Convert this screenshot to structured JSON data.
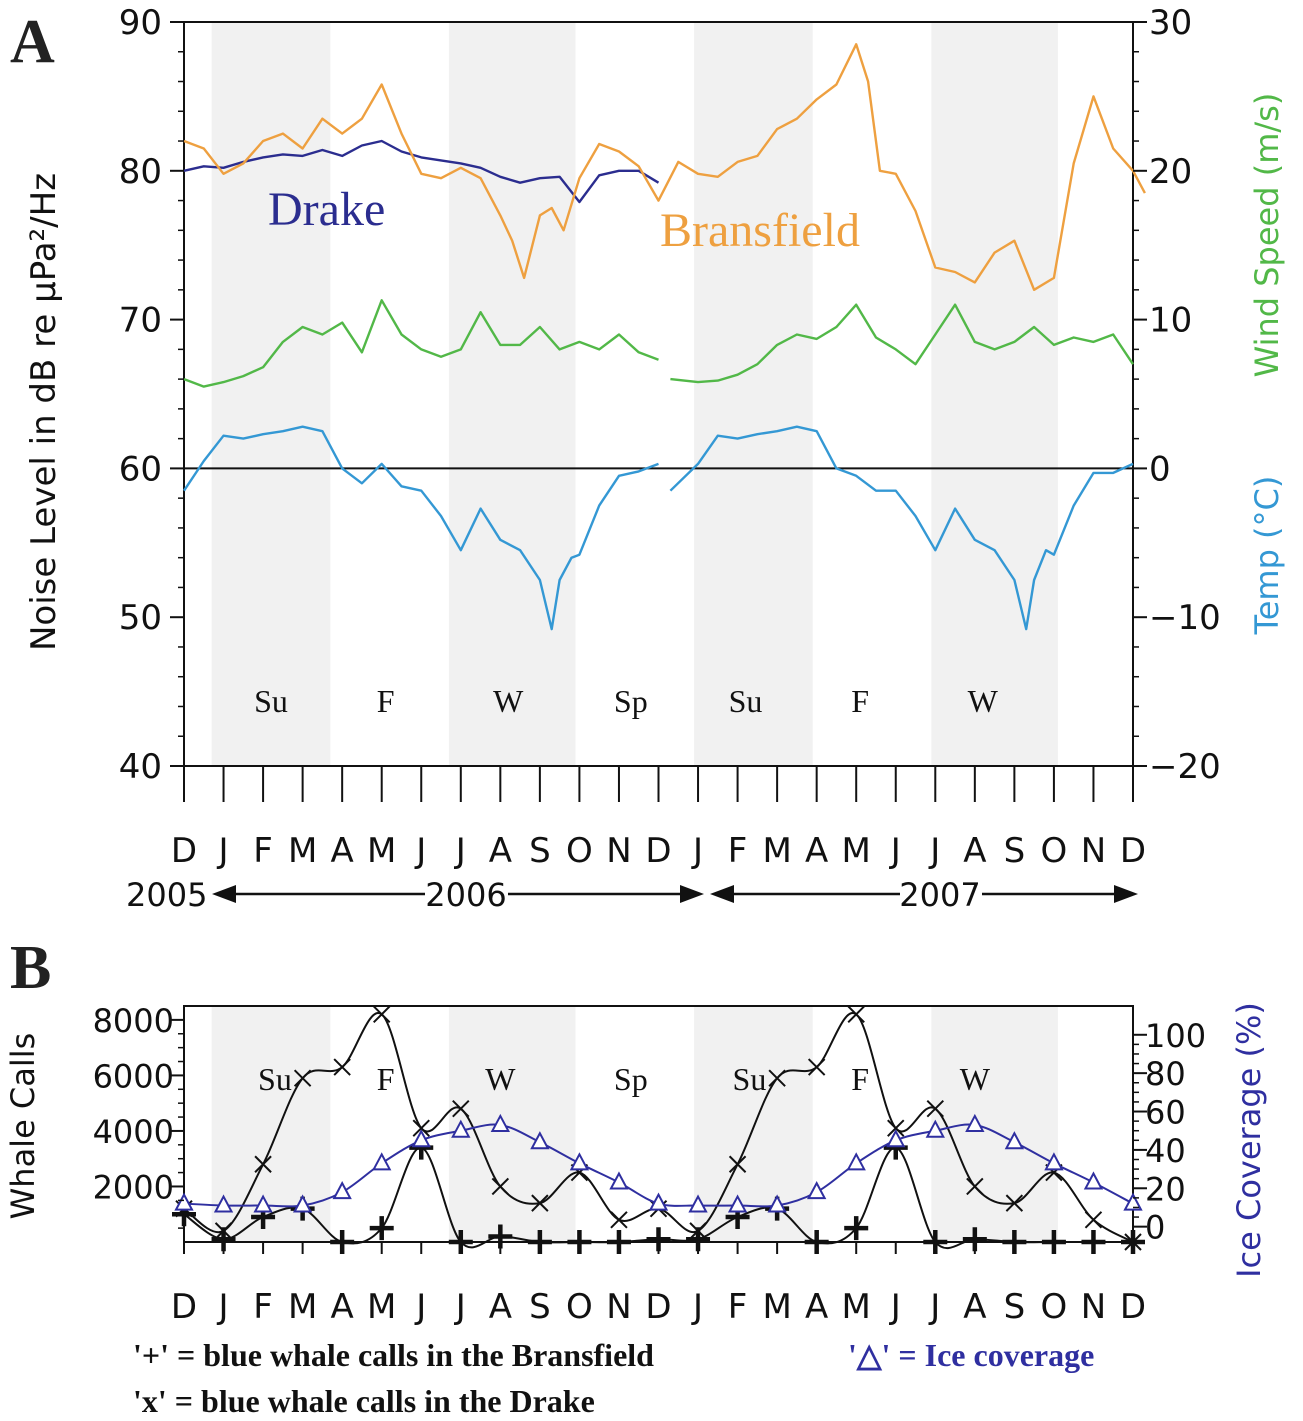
{
  "colors": {
    "drake": "#2b2d8f",
    "bransfield": "#eea040",
    "wind": "#52b848",
    "temp": "#3498d4",
    "ice": "#2f2fa0",
    "calls": "#111111",
    "shade": "#f1f1f1"
  },
  "chart_data": [
    {
      "panel_label": "A",
      "type": "line",
      "ylabel": "Noise Level in dB re μPa²/Hz",
      "ylabel_right_wind": "Wind Speed (m/s)",
      "ylabel_right_temp": "Temp (°C)",
      "y_ticks_left": [
        "40",
        "50",
        "60",
        "70",
        "80",
        "90"
      ],
      "y_ticks_right": [
        "−20",
        "−10",
        "0",
        "10",
        "20",
        "30"
      ],
      "ylim": [
        40,
        90
      ],
      "ylim_right": [
        -20,
        30
      ],
      "month_ticks": [
        "D",
        "J",
        "F",
        "M",
        "A",
        "M",
        "J",
        "J",
        "A",
        "S",
        "O",
        "N",
        "D",
        "J",
        "F",
        "M",
        "A",
        "M",
        "J",
        "J",
        "A",
        "S",
        "O",
        "N",
        "D"
      ],
      "years": [
        "2005",
        "2006",
        "2007"
      ],
      "season_labels": [
        {
          "text": "Su",
          "month": 2.2
        },
        {
          "text": "F",
          "month": 5.1
        },
        {
          "text": "W",
          "month": 8.2
        },
        {
          "text": "Sp",
          "month": 11.3
        },
        {
          "text": "Su",
          "month": 14.2
        },
        {
          "text": "F",
          "month": 17.1
        },
        {
          "text": "W",
          "month": 20.2
        }
      ],
      "shade_bands": [
        [
          0.7,
          3.7
        ],
        [
          6.7,
          9.9
        ],
        [
          12.9,
          15.9
        ],
        [
          18.9,
          22.1
        ]
      ],
      "reference_line_y": 60,
      "series": [
        {
          "name": "Drake",
          "color_key": "drake",
          "axis": "left",
          "x": [
            0,
            0.5,
            1.0,
            1.5,
            2.0,
            2.5,
            3.0,
            3.5,
            4.0,
            4.5,
            5.0,
            5.5,
            6.0,
            6.5,
            7.0,
            7.5,
            8.0,
            8.5,
            9.0,
            9.5,
            10.0,
            10.5,
            11.0,
            11.5,
            12.0
          ],
          "y": [
            80,
            80.3,
            80.2,
            80.6,
            80.9,
            81.1,
            81.0,
            81.4,
            81.0,
            81.7,
            82.0,
            81.3,
            80.9,
            80.7,
            80.5,
            80.2,
            79.6,
            79.2,
            79.5,
            79.6,
            77.9,
            79.7,
            80.0,
            80.0,
            79.2
          ]
        },
        {
          "name": "Bransfield",
          "color_key": "bransfield",
          "axis": "left",
          "x": [
            0,
            0.5,
            1.0,
            1.5,
            2.0,
            2.5,
            3.0,
            3.5,
            4.0,
            4.5,
            5.0,
            5.5,
            6.0,
            6.5,
            7.0,
            7.5,
            8.0,
            8.3,
            8.6,
            9.0,
            9.3,
            9.6,
            10.0,
            10.5,
            11.0,
            11.5,
            12.0,
            12.5,
            13.0,
            13.5,
            14.0,
            14.5,
            15.0,
            15.5,
            16.0,
            16.5,
            17.0,
            17.3,
            17.6,
            18.0,
            18.5,
            19.0,
            19.5,
            20.0,
            20.5,
            21.0,
            21.5,
            22.0,
            22.5,
            23.0,
            23.5,
            24.0,
            24.3
          ],
          "y": [
            82,
            81.5,
            79.8,
            80.5,
            82,
            82.5,
            81.5,
            83.5,
            82.5,
            83.5,
            85.8,
            82.5,
            79.8,
            79.5,
            80.2,
            79.5,
            77,
            75.3,
            72.8,
            77,
            77.5,
            76,
            79.5,
            81.8,
            81.3,
            80.3,
            78.0,
            80.6,
            79.8,
            79.6,
            80.6,
            81.0,
            82.8,
            83.5,
            84.8,
            85.8,
            88.5,
            86,
            80,
            79.8,
            77.3,
            73.5,
            73.2,
            72.5,
            74.5,
            75.3,
            72,
            72.8,
            80.5,
            85,
            81.5,
            80,
            78.5
          ]
        },
        {
          "name": "Wind Speed",
          "color_key": "wind",
          "axis": "right",
          "x": [
            0,
            0.5,
            1.0,
            1.5,
            2.0,
            2.5,
            3.0,
            3.5,
            4.0,
            4.5,
            5.0,
            5.5,
            6.0,
            6.5,
            7.0,
            7.5,
            8.0,
            8.5,
            9.0,
            9.5,
            10.0,
            10.5,
            11.0,
            11.5,
            12.0,
            null,
            12.3,
            13.0,
            13.5,
            14.0,
            14.5,
            15.0,
            15.5,
            16.0,
            16.5,
            17.0,
            17.5,
            18.0,
            18.5,
            19.0,
            19.5,
            20.0,
            20.5,
            21.0,
            21.5,
            22.0,
            22.5,
            23.0,
            23.5,
            24.0
          ],
          "y": [
            6,
            5.5,
            5.8,
            6.2,
            6.8,
            8.5,
            9.5,
            9.0,
            9.8,
            7.8,
            11.3,
            9.0,
            8.0,
            7.5,
            8.0,
            10.5,
            8.3,
            8.3,
            9.5,
            8.0,
            8.5,
            8.0,
            9.0,
            7.8,
            7.3,
            null,
            6.0,
            5.8,
            5.9,
            6.3,
            7.0,
            8.3,
            9.0,
            8.7,
            9.5,
            11.0,
            8.8,
            8.0,
            7.0,
            9.0,
            11.0,
            8.5,
            8.0,
            8.5,
            9.5,
            8.3,
            8.8,
            8.5,
            9.0,
            7.0
          ]
        },
        {
          "name": "Temp",
          "color_key": "temp",
          "axis": "right",
          "x": [
            0,
            0.5,
            1.0,
            1.5,
            2.0,
            2.5,
            3.0,
            3.5,
            4.0,
            4.5,
            5.0,
            5.5,
            6.0,
            6.5,
            7.0,
            7.5,
            8.0,
            8.5,
            9.0,
            9.3,
            9.5,
            9.8,
            10.0,
            10.5,
            11.0,
            11.5,
            12.0,
            null,
            12.3,
            13.0,
            13.5,
            14.0,
            14.5,
            15.0,
            15.5,
            16.0,
            16.5,
            17.0,
            17.5,
            18.0,
            18.5,
            19.0,
            19.5,
            20.0,
            20.5,
            21.0,
            21.3,
            21.5,
            21.8,
            22.0,
            22.5,
            23.0,
            23.5,
            24.0
          ],
          "y": [
            -1.5,
            0.5,
            2.2,
            2.0,
            2.3,
            2.5,
            2.8,
            2.5,
            0.0,
            -1.0,
            0.3,
            -1.2,
            -1.5,
            -3.2,
            -5.5,
            -2.7,
            -4.8,
            -5.5,
            -7.5,
            -10.8,
            -7.5,
            -6.0,
            -5.8,
            -2.5,
            -0.5,
            -0.2,
            0.3,
            null,
            -1.5,
            0.3,
            2.2,
            2.0,
            2.3,
            2.5,
            2.8,
            2.5,
            0.0,
            -0.5,
            -1.5,
            -1.5,
            -3.2,
            -5.5,
            -2.7,
            -4.8,
            -5.5,
            -7.5,
            -10.8,
            -7.5,
            -5.5,
            -5.8,
            -2.5,
            -0.3,
            -0.3,
            0.3
          ]
        }
      ]
    },
    {
      "panel_label": "B",
      "type": "line",
      "ylabel": "Whale Calls",
      "ylabel_right": "Ice Coverage (%)",
      "y_ticks_left": [
        "2000",
        "4000",
        "6000",
        "8000"
      ],
      "y_ticks_right": [
        "0",
        "20",
        "40",
        "60",
        "80",
        "100"
      ],
      "ylim": [
        0,
        8500
      ],
      "ylim_right": [
        -8,
        115
      ],
      "month_ticks": [
        "D",
        "J",
        "F",
        "M",
        "A",
        "M",
        "J",
        "J",
        "A",
        "S",
        "O",
        "N",
        "D",
        "J",
        "F",
        "M",
        "A",
        "M",
        "J",
        "J",
        "A",
        "S",
        "O",
        "N",
        "D"
      ],
      "season_labels": [
        {
          "text": "Su",
          "month": 2.3
        },
        {
          "text": "F",
          "month": 5.1
        },
        {
          "text": "W",
          "month": 8.0
        },
        {
          "text": "Sp",
          "month": 11.3
        },
        {
          "text": "Su",
          "month": 14.3
        },
        {
          "text": "F",
          "month": 17.1
        },
        {
          "text": "W",
          "month": 20.0
        }
      ],
      "shade_bands": [
        [
          0.7,
          3.7
        ],
        [
          6.7,
          9.9
        ],
        [
          12.9,
          15.9
        ],
        [
          18.9,
          22.1
        ]
      ],
      "series": [
        {
          "name": "blue whale calls in the Bransfield",
          "marker": "+",
          "color_key": "calls",
          "axis": "left",
          "x": [
            0,
            1,
            2,
            3,
            4,
            5,
            6,
            7,
            8,
            9,
            10,
            11,
            12,
            13,
            14,
            15,
            16,
            17,
            18,
            19,
            20,
            21,
            22,
            23,
            24
          ],
          "y": [
            1000,
            100,
            900,
            1200,
            0,
            500,
            3400,
            0,
            200,
            0,
            0,
            0,
            100,
            100,
            900,
            1200,
            0,
            500,
            3400,
            0,
            100,
            0,
            0,
            0,
            0
          ]
        },
        {
          "name": "blue whale calls in the Drake",
          "marker": "x",
          "color_key": "calls",
          "axis": "left",
          "x": [
            0,
            1,
            2,
            3,
            4,
            5,
            6,
            7,
            8,
            9,
            10,
            11,
            12,
            13,
            14,
            15,
            16,
            17,
            18,
            19,
            20,
            21,
            22,
            23,
            24
          ],
          "y": [
            1200,
            400,
            2800,
            5900,
            6300,
            8200,
            4100,
            4800,
            2000,
            1400,
            2500,
            800,
            1200,
            400,
            2800,
            5900,
            6300,
            8200,
            4100,
            4800,
            2000,
            1400,
            2500,
            800,
            0
          ]
        },
        {
          "name": "Ice coverage",
          "marker": "triangle",
          "color_key": "ice",
          "axis": "right",
          "x": [
            0,
            1,
            2,
            3,
            4,
            5,
            6,
            7,
            8,
            9,
            10,
            11,
            12,
            13,
            14,
            15,
            16,
            17,
            18,
            19,
            20,
            21,
            22,
            23,
            24
          ],
          "y": [
            12,
            11,
            11,
            11,
            18,
            33,
            45,
            50,
            53,
            44,
            33,
            23,
            12,
            11,
            11,
            11,
            18,
            33,
            45,
            50,
            53,
            44,
            33,
            23,
            12
          ]
        }
      ]
    }
  ],
  "series_labels": {
    "drake": "Drake",
    "bransfield": "Bransfield"
  },
  "legend": {
    "bransfield_calls": "'+' = blue whale calls in the Bransfield",
    "ice": "'△' = Ice coverage",
    "drake_calls": "'x' = blue whale calls in the Drake"
  }
}
